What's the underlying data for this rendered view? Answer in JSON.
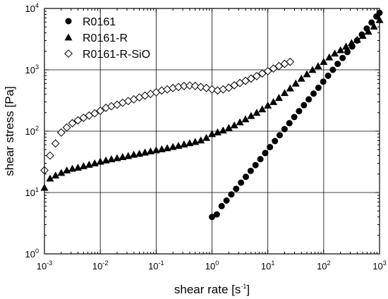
{
  "chart_data": {
    "type": "scatter",
    "title": "",
    "xlabel": {
      "text": "shear rate [s",
      "sup": "-1",
      "tail": "]"
    },
    "ylabel": "shear stress [Pa]",
    "x_scale": "log",
    "y_scale": "log",
    "xlim": [
      0.001,
      1000
    ],
    "ylim": [
      1,
      10000
    ],
    "grid": true,
    "legend_position": "top-left",
    "x_ticks": [
      {
        "base": "10",
        "exp": "-3",
        "value": 0.001
      },
      {
        "base": "10",
        "exp": "-2",
        "value": 0.01
      },
      {
        "base": "10",
        "exp": "-1",
        "value": 0.1
      },
      {
        "base": "10",
        "exp": "0",
        "value": 1
      },
      {
        "base": "10",
        "exp": "1",
        "value": 10
      },
      {
        "base": "10",
        "exp": "2",
        "value": 100
      },
      {
        "base": "10",
        "exp": "3",
        "value": 1000
      }
    ],
    "y_ticks": [
      {
        "base": "10",
        "exp": "0",
        "value": 1
      },
      {
        "base": "10",
        "exp": "1",
        "value": 10
      },
      {
        "base": "10",
        "exp": "2",
        "value": 100
      },
      {
        "base": "10",
        "exp": "3",
        "value": 1000
      },
      {
        "base": "10",
        "exp": "4",
        "value": 10000
      }
    ],
    "series": [
      {
        "name": "R0161",
        "marker": "circle-filled",
        "color": "#000000",
        "x": [
          1.0,
          1.22,
          1.49,
          1.82,
          2.22,
          2.71,
          3.31,
          4.04,
          4.93,
          6.02,
          7.35,
          8.97,
          10.9,
          13.4,
          16.3,
          19.9,
          24.3,
          29.7,
          36.2,
          44.2,
          54.0,
          65.9,
          80.4,
          98.2,
          120,
          146,
          178,
          218,
          266,
          324,
          396,
          483,
          590,
          720,
          879,
          1000
        ],
        "y": [
          4.0,
          4.4,
          6.0,
          7.4,
          9.3,
          11.5,
          14.5,
          18,
          22.5,
          28,
          35,
          44,
          55,
          69,
          86,
          108,
          135,
          170,
          212,
          265,
          330,
          410,
          510,
          640,
          800,
          1000,
          1250,
          1560,
          1950,
          2400,
          3000,
          3750,
          4700,
          5900,
          7400,
          8500
        ]
      },
      {
        "name": "R0161-R",
        "marker": "triangle-filled",
        "color": "#000000",
        "x": [
          0.001,
          0.00126,
          0.00158,
          0.002,
          0.00251,
          0.00316,
          0.00398,
          0.00501,
          0.00631,
          0.00794,
          0.01,
          0.0126,
          0.0158,
          0.02,
          0.0251,
          0.0316,
          0.0398,
          0.0501,
          0.0631,
          0.0794,
          0.1,
          0.126,
          0.158,
          0.2,
          0.251,
          0.316,
          0.398,
          0.501,
          0.631,
          0.794,
          1.0,
          1.26,
          1.58,
          2.0,
          2.51,
          3.16,
          3.98,
          5.01,
          6.31,
          7.94,
          10,
          12.6,
          15.8,
          20,
          25.1,
          31.6,
          39.8,
          50.1,
          63.1,
          79.4,
          100,
          126,
          158,
          200,
          251,
          316,
          398,
          501,
          631,
          794,
          1000
        ],
        "y": [
          12,
          17,
          19,
          21,
          23,
          24.5,
          25.5,
          27,
          28.5,
          30,
          32,
          33.5,
          35,
          36.5,
          38,
          39.5,
          41.5,
          43,
          45,
          47,
          49,
          51,
          53,
          55.5,
          58,
          61,
          64,
          67,
          71,
          78,
          90,
          96,
          103,
          113,
          125,
          140,
          157,
          178,
          200,
          228,
          263,
          300,
          350,
          420,
          500,
          600,
          720,
          850,
          1000,
          1150,
          1350,
          1600,
          1850,
          2100,
          2400,
          2750,
          3100,
          3600,
          4200,
          5100,
          6500
        ]
      },
      {
        "name": "R0161-R-SiO",
        "marker": "diamond-open",
        "color": "#000000",
        "x": [
          0.001,
          0.00126,
          0.00158,
          0.002,
          0.00251,
          0.00316,
          0.00398,
          0.00501,
          0.00631,
          0.00794,
          0.01,
          0.0126,
          0.0158,
          0.02,
          0.0251,
          0.0316,
          0.0398,
          0.0501,
          0.0631,
          0.0794,
          0.1,
          0.126,
          0.158,
          0.2,
          0.251,
          0.316,
          0.398,
          0.501,
          0.631,
          0.794,
          1.0,
          1.26,
          1.58,
          2.0,
          2.51,
          3.16,
          3.98,
          5.01,
          6.31,
          7.94,
          10,
          12.6,
          15.8,
          20,
          25.1
        ],
        "y": [
          23,
          40,
          63,
          95,
          115,
          135,
          150,
          165,
          180,
          195,
          215,
          240,
          255,
          270,
          290,
          310,
          330,
          355,
          380,
          405,
          430,
          460,
          480,
          505,
          525,
          545,
          555,
          545,
          525,
          505,
          480,
          460,
          480,
          510,
          560,
          610,
          660,
          720,
          790,
          870,
          950,
          1050,
          1150,
          1250,
          1350
        ]
      }
    ]
  }
}
